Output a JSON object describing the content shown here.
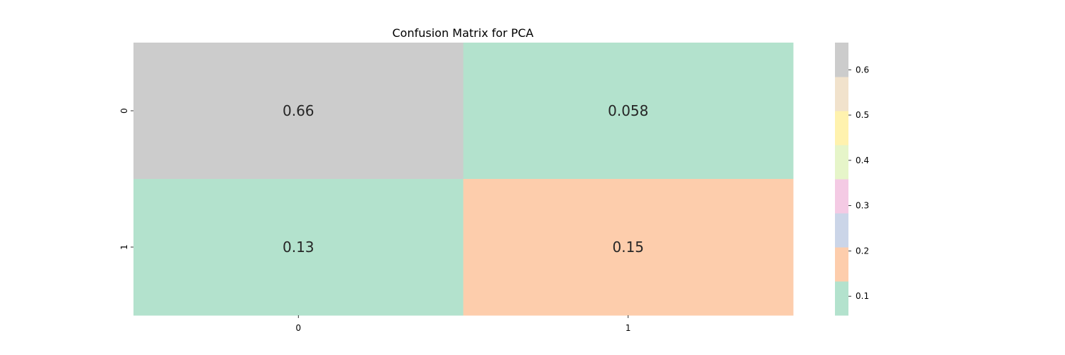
{
  "chart_data": {
    "type": "heatmap",
    "title": "Confusion Matrix for PCA",
    "xlabel": "",
    "ylabel": "",
    "x_categories": [
      "0",
      "1"
    ],
    "y_categories": [
      "0",
      "1"
    ],
    "values": [
      [
        0.66,
        0.058
      ],
      [
        0.13,
        0.15
      ]
    ],
    "value_labels": [
      [
        "0.66",
        "0.058"
      ],
      [
        "0.13",
        "0.15"
      ]
    ],
    "colorbar": {
      "min": 0.058,
      "max": 0.66,
      "ticks": [
        0.1,
        0.2,
        0.3,
        0.4,
        0.5,
        0.6
      ],
      "tick_labels": [
        "0.1",
        "0.2",
        "0.3",
        "0.4",
        "0.5",
        "0.6"
      ],
      "colormap": "Pastel2",
      "colors": [
        "#b3e2cd",
        "#fdcdac",
        "#cbd5e8",
        "#f4cae4",
        "#e6f5c9",
        "#fff2ae",
        "#f1e2cc",
        "#cccccc"
      ]
    },
    "grid": false
  }
}
